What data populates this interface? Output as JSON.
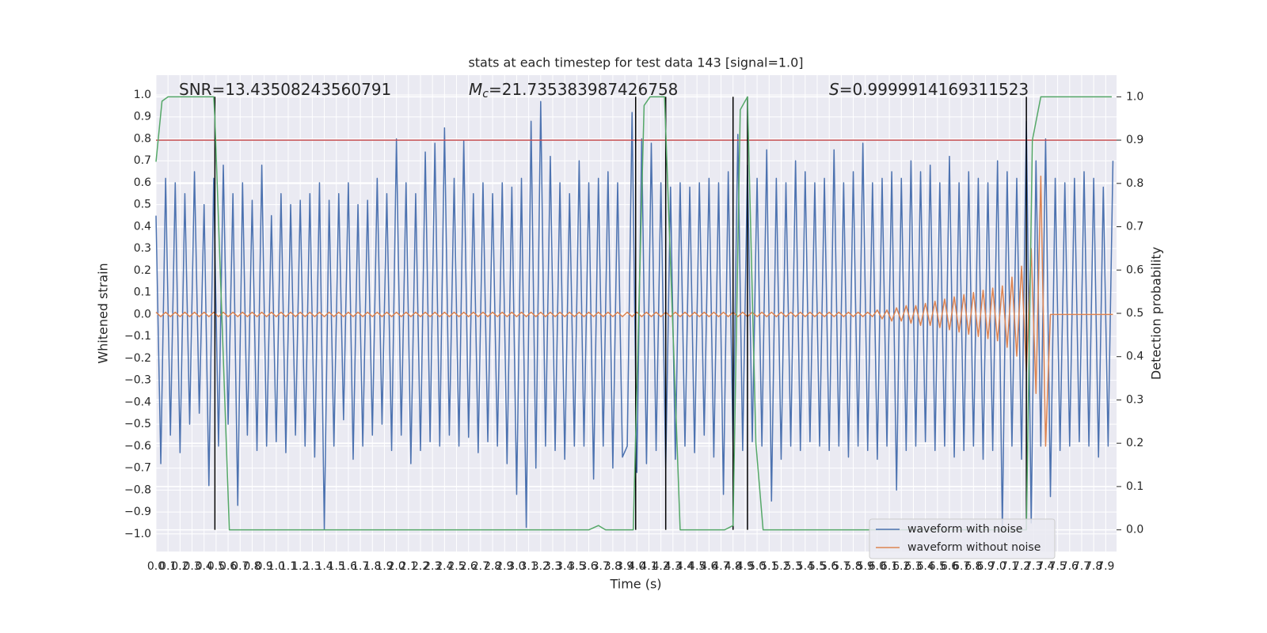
{
  "chart_data": {
    "type": "line",
    "title": "stats at each timestep for test data 143 [signal=1.0]",
    "xlabel": "Time (s)",
    "ylabel": "Whitened strain",
    "y2label": "Detection probability",
    "annotations": [
      {
        "text": "SNR=13.43508243560791"
      },
      {
        "symbol": "M",
        "sub": "c",
        "text": "=21.735383987426758"
      },
      {
        "symbol": "S",
        "text": "=0.9999914169311523"
      }
    ],
    "xlim": [
      0,
      7.99
    ],
    "ylim": [
      -1.08,
      1.09
    ],
    "y2lim": [
      -0.05,
      1.05
    ],
    "grid": true,
    "legend": "lower right",
    "xticks": [
      {
        "value": 0,
        "label": "0.0"
      },
      0.1,
      0.2,
      0.3,
      0.4,
      0.5,
      0.6,
      0.7,
      0.8,
      0.9,
      {
        "value": 1,
        "label": "1.0"
      },
      1.1,
      1.2,
      1.3,
      1.4,
      1.5,
      1.6,
      1.7,
      1.8,
      1.9,
      {
        "value": 2,
        "label": "2.0"
      },
      2.1,
      2.2,
      2.3,
      2.4,
      2.5,
      2.6,
      2.7,
      2.8,
      2.9,
      {
        "value": 3,
        "label": "3.0"
      },
      3.1,
      3.2,
      3.3,
      3.4,
      3.5,
      3.6,
      3.7,
      3.8,
      3.9,
      {
        "value": 4,
        "label": "4.0"
      },
      4.1,
      4.2,
      4.3,
      4.4,
      4.5,
      4.6,
      4.7,
      4.8,
      4.9,
      {
        "value": 5,
        "label": "5.0"
      },
      5.1,
      5.2,
      5.3,
      5.4,
      5.5,
      5.6,
      5.7,
      5.8,
      5.9,
      {
        "value": 6,
        "label": "6.0"
      },
      6.1,
      6.2,
      6.3,
      6.4,
      6.5,
      6.6,
      6.7,
      6.8,
      6.9,
      {
        "value": 7,
        "label": "7.0"
      },
      7.1,
      7.2,
      7.3,
      7.4,
      7.5,
      7.6,
      7.7,
      7.8,
      7.9
    ],
    "yticks": [
      {
        "value": -1,
        "label": "−1.0"
      },
      {
        "value": -0.9,
        "label": "−0.9"
      },
      {
        "value": -0.8,
        "label": "−0.8"
      },
      {
        "value": -0.7,
        "label": "−0.7"
      },
      {
        "value": -0.6,
        "label": "−0.6"
      },
      {
        "value": -0.5,
        "label": "−0.5"
      },
      {
        "value": -0.4,
        "label": "−0.4"
      },
      {
        "value": -0.3,
        "label": "−0.3"
      },
      {
        "value": -0.2,
        "label": "−0.2"
      },
      {
        "value": -0.1,
        "label": "−0.1"
      },
      {
        "value": 0,
        "label": "0.0"
      },
      0.1,
      0.2,
      0.3,
      0.4,
      0.5,
      0.6,
      0.7,
      0.8,
      0.9,
      {
        "value": 1,
        "label": "1.0"
      }
    ],
    "y2ticks": [
      {
        "value": 0,
        "label": "0.0"
      },
      0.1,
      0.2,
      0.3,
      0.4,
      0.5,
      0.6,
      0.7,
      0.8,
      0.9,
      {
        "value": 1,
        "label": "1.0"
      }
    ],
    "x": [
      0,
      0.04,
      0.08,
      0.12,
      0.16,
      0.2,
      0.24,
      0.28,
      0.32,
      0.36,
      0.4,
      0.44,
      0.48,
      0.52,
      0.56,
      0.6,
      0.64,
      0.68,
      0.72,
      0.76,
      0.8,
      0.84,
      0.88,
      0.92,
      0.96,
      1,
      1.04,
      1.08,
      1.12,
      1.16,
      1.2,
      1.24,
      1.28,
      1.32,
      1.36,
      1.4,
      1.44,
      1.48,
      1.52,
      1.56,
      1.6,
      1.64,
      1.68,
      1.72,
      1.76,
      1.8,
      1.84,
      1.88,
      1.92,
      1.96,
      2,
      2.04,
      2.08,
      2.12,
      2.16,
      2.2,
      2.24,
      2.28,
      2.32,
      2.36,
      2.4,
      2.44,
      2.48,
      2.52,
      2.56,
      2.6,
      2.64,
      2.68,
      2.72,
      2.76,
      2.8,
      2.84,
      2.88,
      2.92,
      2.96,
      3,
      3.04,
      3.08,
      3.12,
      3.16,
      3.2,
      3.24,
      3.28,
      3.32,
      3.36,
      3.4,
      3.44,
      3.48,
      3.52,
      3.56,
      3.6,
      3.64,
      3.68,
      3.72,
      3.76,
      3.8,
      3.84,
      3.88,
      3.92,
      3.96,
      4,
      4.04,
      4.08,
      4.12,
      4.16,
      4.2,
      4.24,
      4.28,
      4.32,
      4.36,
      4.4,
      4.44,
      4.48,
      4.52,
      4.56,
      4.6,
      4.64,
      4.68,
      4.72,
      4.76,
      4.8,
      4.84,
      4.88,
      4.92,
      4.96,
      5,
      5.04,
      5.08,
      5.12,
      5.16,
      5.2,
      5.24,
      5.28,
      5.32,
      5.36,
      5.4,
      5.44,
      5.48,
      5.52,
      5.56,
      5.6,
      5.64,
      5.68,
      5.72,
      5.76,
      5.8,
      5.84,
      5.88,
      5.92,
      5.96,
      6,
      6.04,
      6.08,
      6.12,
      6.16,
      6.2,
      6.24,
      6.28,
      6.32,
      6.36,
      6.4,
      6.44,
      6.48,
      6.52,
      6.56,
      6.6,
      6.64,
      6.68,
      6.72,
      6.76,
      6.8,
      6.84,
      6.88,
      6.92,
      6.96,
      7,
      7.04,
      7.08,
      7.12,
      7.16,
      7.2,
      7.24,
      7.28,
      7.32,
      7.36,
      7.4,
      7.44,
      7.48,
      7.52,
      7.56,
      7.6,
      7.64,
      7.68,
      7.72,
      7.76,
      7.8,
      7.84,
      7.88,
      7.92,
      7.96
    ],
    "series": [
      {
        "name": "waveform with noise",
        "color": "#4c72b0",
        "values": [
          0.45,
          -0.68,
          0.62,
          -0.55,
          0.6,
          -0.63,
          0.55,
          -0.5,
          0.65,
          -0.45,
          0.5,
          -0.78,
          0.62,
          -0.6,
          0.68,
          -0.5,
          0.55,
          -0.87,
          0.6,
          -0.55,
          0.52,
          -0.62,
          0.68,
          -0.6,
          0.45,
          -0.58,
          0.55,
          -0.63,
          0.5,
          -0.55,
          0.52,
          -0.6,
          0.55,
          -0.65,
          0.6,
          -0.98,
          0.52,
          -0.6,
          0.55,
          -0.48,
          0.6,
          -0.66,
          0.5,
          -0.6,
          0.52,
          -0.55,
          0.62,
          -0.5,
          0.55,
          -0.62,
          0.8,
          -0.55,
          0.6,
          -0.68,
          0.55,
          -0.62,
          0.74,
          -0.58,
          0.78,
          -0.6,
          0.85,
          -0.55,
          0.62,
          -0.6,
          0.79,
          -0.56,
          0.55,
          -0.63,
          0.6,
          -0.58,
          0.55,
          -0.6,
          0.6,
          -0.68,
          0.58,
          -0.82,
          0.62,
          -0.97,
          0.88,
          -0.7,
          0.97,
          -0.6,
          0.72,
          -0.62,
          0.6,
          -0.66,
          0.55,
          -0.6,
          0.7,
          -0.6,
          0.6,
          -0.75,
          0.62,
          -0.6,
          0.65,
          -0.7,
          0.6,
          -0.65,
          -0.6,
          0.92,
          -0.72,
          0.8,
          -0.68,
          0.78,
          -0.62,
          0.6,
          -0.7,
          0.58,
          -0.66,
          0.6,
          -0.6,
          0.58,
          -0.63,
          0.6,
          -0.55,
          0.62,
          -0.65,
          0.6,
          -0.82,
          0.65,
          -0.6,
          0.82,
          -0.62,
          0.68,
          -0.58,
          0.62,
          -0.6,
          0.75,
          -0.85,
          0.62,
          -0.66,
          0.6,
          -0.6,
          0.7,
          -0.62,
          0.65,
          -0.58,
          0.6,
          -0.6,
          0.62,
          -0.62,
          0.75,
          -0.6,
          0.6,
          -0.65,
          0.65,
          -0.6,
          0.78,
          -0.62,
          0.6,
          -0.66,
          0.62,
          -0.6,
          0.65,
          -0.8,
          0.62,
          -0.62,
          0.7,
          -0.6,
          0.65,
          -0.58,
          0.68,
          -0.62,
          0.6,
          -0.6,
          0.72,
          -0.65,
          0.6,
          -0.62,
          0.65,
          -0.6,
          0.62,
          -0.66,
          0.6,
          -0.62,
          0.7,
          -0.98,
          0.65,
          -0.6,
          0.62,
          -0.66,
          0.88,
          -0.95,
          0.7,
          -0.6,
          0.8,
          -0.83,
          0.62,
          -0.62,
          0.6,
          -0.6,
          0.62,
          -0.58,
          0.65,
          -0.6,
          0.62,
          -0.65,
          0.58,
          -0.6,
          0.7
        ]
      },
      {
        "name": "waveform without noise",
        "color": "#dd8452",
        "values": [
          0.01,
          -0.01,
          0.01,
          -0.01,
          0.01,
          -0.01,
          0.01,
          -0.01,
          0.01,
          -0.01,
          0.01,
          -0.01,
          0.01,
          -0.01,
          0.01,
          -0.01,
          0.01,
          -0.01,
          0.01,
          -0.01,
          0.01,
          -0.01,
          0.01,
          -0.01,
          0.01,
          -0.01,
          0.01,
          -0.01,
          0.01,
          -0.01,
          0.01,
          -0.01,
          0.01,
          -0.01,
          0.01,
          -0.01,
          0.01,
          -0.01,
          0.01,
          -0.01,
          0.01,
          -0.01,
          0.01,
          -0.01,
          0.01,
          -0.01,
          0.01,
          -0.01,
          0.01,
          -0.01,
          0.01,
          -0.01,
          0.01,
          -0.01,
          0.01,
          -0.01,
          0.01,
          -0.01,
          0.01,
          -0.01,
          0.01,
          -0.01,
          0.01,
          -0.01,
          0.01,
          -0.01,
          0.01,
          -0.01,
          0.01,
          -0.01,
          0.01,
          -0.01,
          0.01,
          -0.01,
          0.01,
          -0.01,
          0.01,
          -0.01,
          0.01,
          -0.01,
          0.01,
          -0.01,
          0.01,
          -0.01,
          0.01,
          -0.01,
          0.01,
          -0.01,
          0.01,
          -0.01,
          0.01,
          -0.01,
          0.01,
          -0.01,
          0.01,
          -0.01,
          0.01,
          -0.01,
          0.01,
          -0.01,
          0.01,
          -0.01,
          0.01,
          -0.01,
          0.01,
          -0.01,
          0.01,
          -0.01,
          0.01,
          -0.01,
          0.01,
          -0.01,
          0.01,
          -0.01,
          0.01,
          -0.01,
          0.01,
          -0.01,
          0.01,
          -0.01,
          0.01,
          -0.01,
          0.01,
          -0.01,
          0.01,
          -0.01,
          0.01,
          -0.01,
          0.01,
          -0.01,
          0.01,
          -0.01,
          0.01,
          -0.01,
          0.01,
          -0.01,
          0.01,
          -0.01,
          0.01,
          -0.01,
          0.01,
          -0.01,
          0.01,
          -0.01,
          0.01,
          -0.01,
          0.01,
          -0.01,
          0.01,
          -0.01,
          0.02,
          -0.02,
          0.02,
          -0.03,
          0.03,
          -0.03,
          0.04,
          -0.04,
          0.04,
          -0.05,
          0.05,
          -0.05,
          0.06,
          -0.06,
          0.07,
          -0.07,
          0.08,
          -0.08,
          0.09,
          -0.09,
          0.1,
          -0.1,
          0.11,
          -0.11,
          0.12,
          -0.12,
          0.13,
          -0.15,
          0.17,
          -0.19,
          0.22,
          -0.26,
          0.3,
          -0.36,
          0.63,
          -0.6,
          0,
          0,
          0,
          0,
          0,
          0,
          0,
          0,
          0,
          0,
          0,
          0,
          0,
          0
        ]
      }
    ],
    "probability": {
      "axis": "y2",
      "color": "#55a868",
      "x": [
        0,
        0.05,
        0.1,
        0.48,
        0.49,
        0.61,
        3.6,
        3.68,
        3.74,
        3.97,
        4.02,
        4.06,
        4.11,
        4.23,
        4.36,
        4.73,
        4.8,
        4.86,
        4.92,
        4.99,
        5.05,
        7.24,
        7.29,
        7.36,
        7.95
      ],
      "values": [
        0.85,
        0.99,
        1.0,
        1.0,
        0.95,
        0.0,
        0.0,
        0.01,
        0.0,
        0.0,
        0.55,
        0.98,
        1.0,
        1.0,
        0.0,
        0.0,
        0.01,
        0.97,
        1.0,
        0.2,
        0.0,
        0.0,
        0.9,
        1.0,
        1.0
      ]
    },
    "threshold": {
      "value": 0.9,
      "axis": "y2",
      "color": "#c44e52"
    },
    "markers": {
      "x": [
        0.49,
        3.99,
        4.24,
        4.8,
        4.92,
        7.24
      ],
      "ymin": 0,
      "ymax": 1,
      "axis": "y2",
      "color": "#000000"
    }
  }
}
